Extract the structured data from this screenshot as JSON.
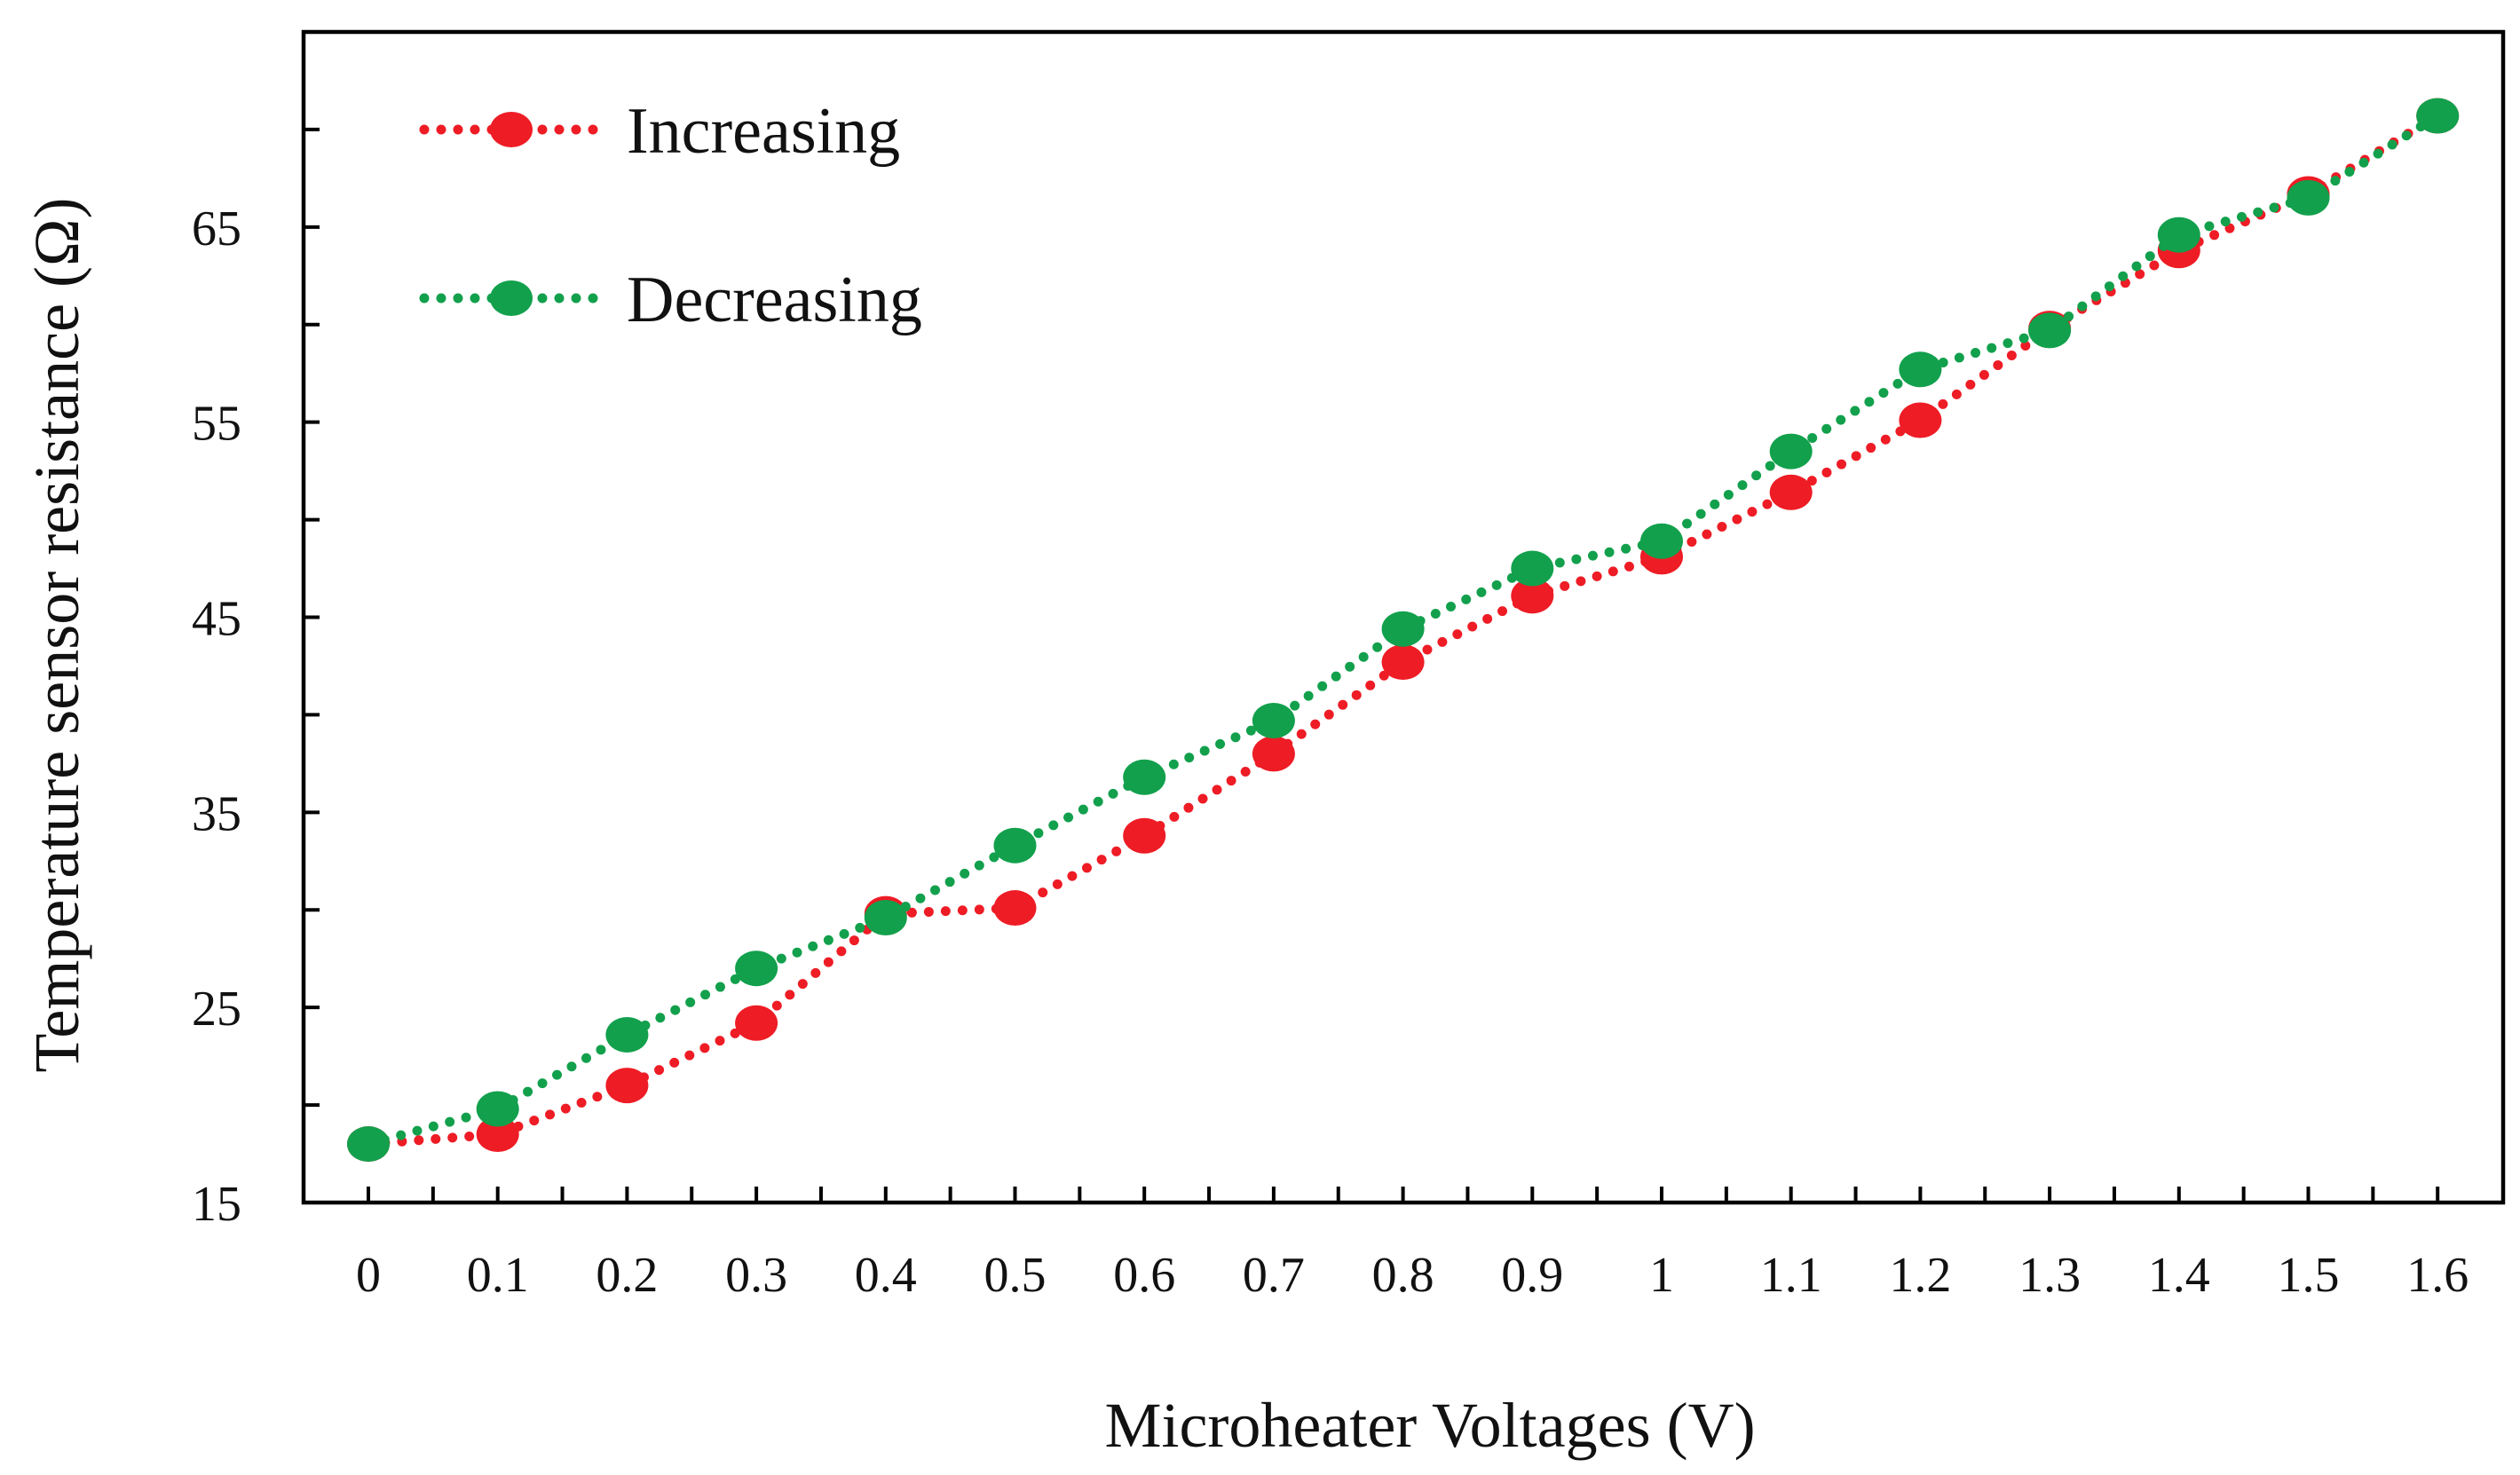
{
  "chart_data": {
    "type": "line",
    "title": "",
    "xlabel": "Microheater Voltages (V)",
    "ylabel": "Temperature sensor resistance (Ω)",
    "x": [
      0,
      0.1,
      0.2,
      0.3,
      0.4,
      0.5,
      0.6,
      0.7,
      0.8,
      0.9,
      1,
      1.1,
      1.2,
      1.3,
      1.4,
      1.5,
      1.6
    ],
    "x_tick_labels": [
      "0",
      "0.1",
      "0.2",
      "0.3",
      "0.4",
      "0.5",
      "0.6",
      "0.7",
      "0.8",
      "0.9",
      "1",
      "1.1",
      "1.2",
      "1.3",
      "1.4",
      "1.5",
      "1.6"
    ],
    "y_ticks": [
      15,
      25,
      35,
      45,
      55,
      65
    ],
    "y_tick_labels": [
      "15",
      "25",
      "35",
      "45",
      "55",
      "65"
    ],
    "ylim": [
      15,
      75
    ],
    "grid": false,
    "legend_position": "top-left",
    "series": [
      {
        "name": "Increasing",
        "color": "#ee1c25",
        "values": [
          18.0,
          18.5,
          21.0,
          24.2,
          29.8,
          30.1,
          33.8,
          38.0,
          42.7,
          46.1,
          48.1,
          51.4,
          55.1,
          59.8,
          63.8,
          66.7,
          70.7
        ]
      },
      {
        "name": "Decreasing",
        "color": "#12a04c",
        "values": [
          18.0,
          19.8,
          23.6,
          27.0,
          29.6,
          33.3,
          36.8,
          39.7,
          44.4,
          47.5,
          48.9,
          53.5,
          57.7,
          59.7,
          64.6,
          66.5,
          70.7
        ]
      }
    ]
  }
}
